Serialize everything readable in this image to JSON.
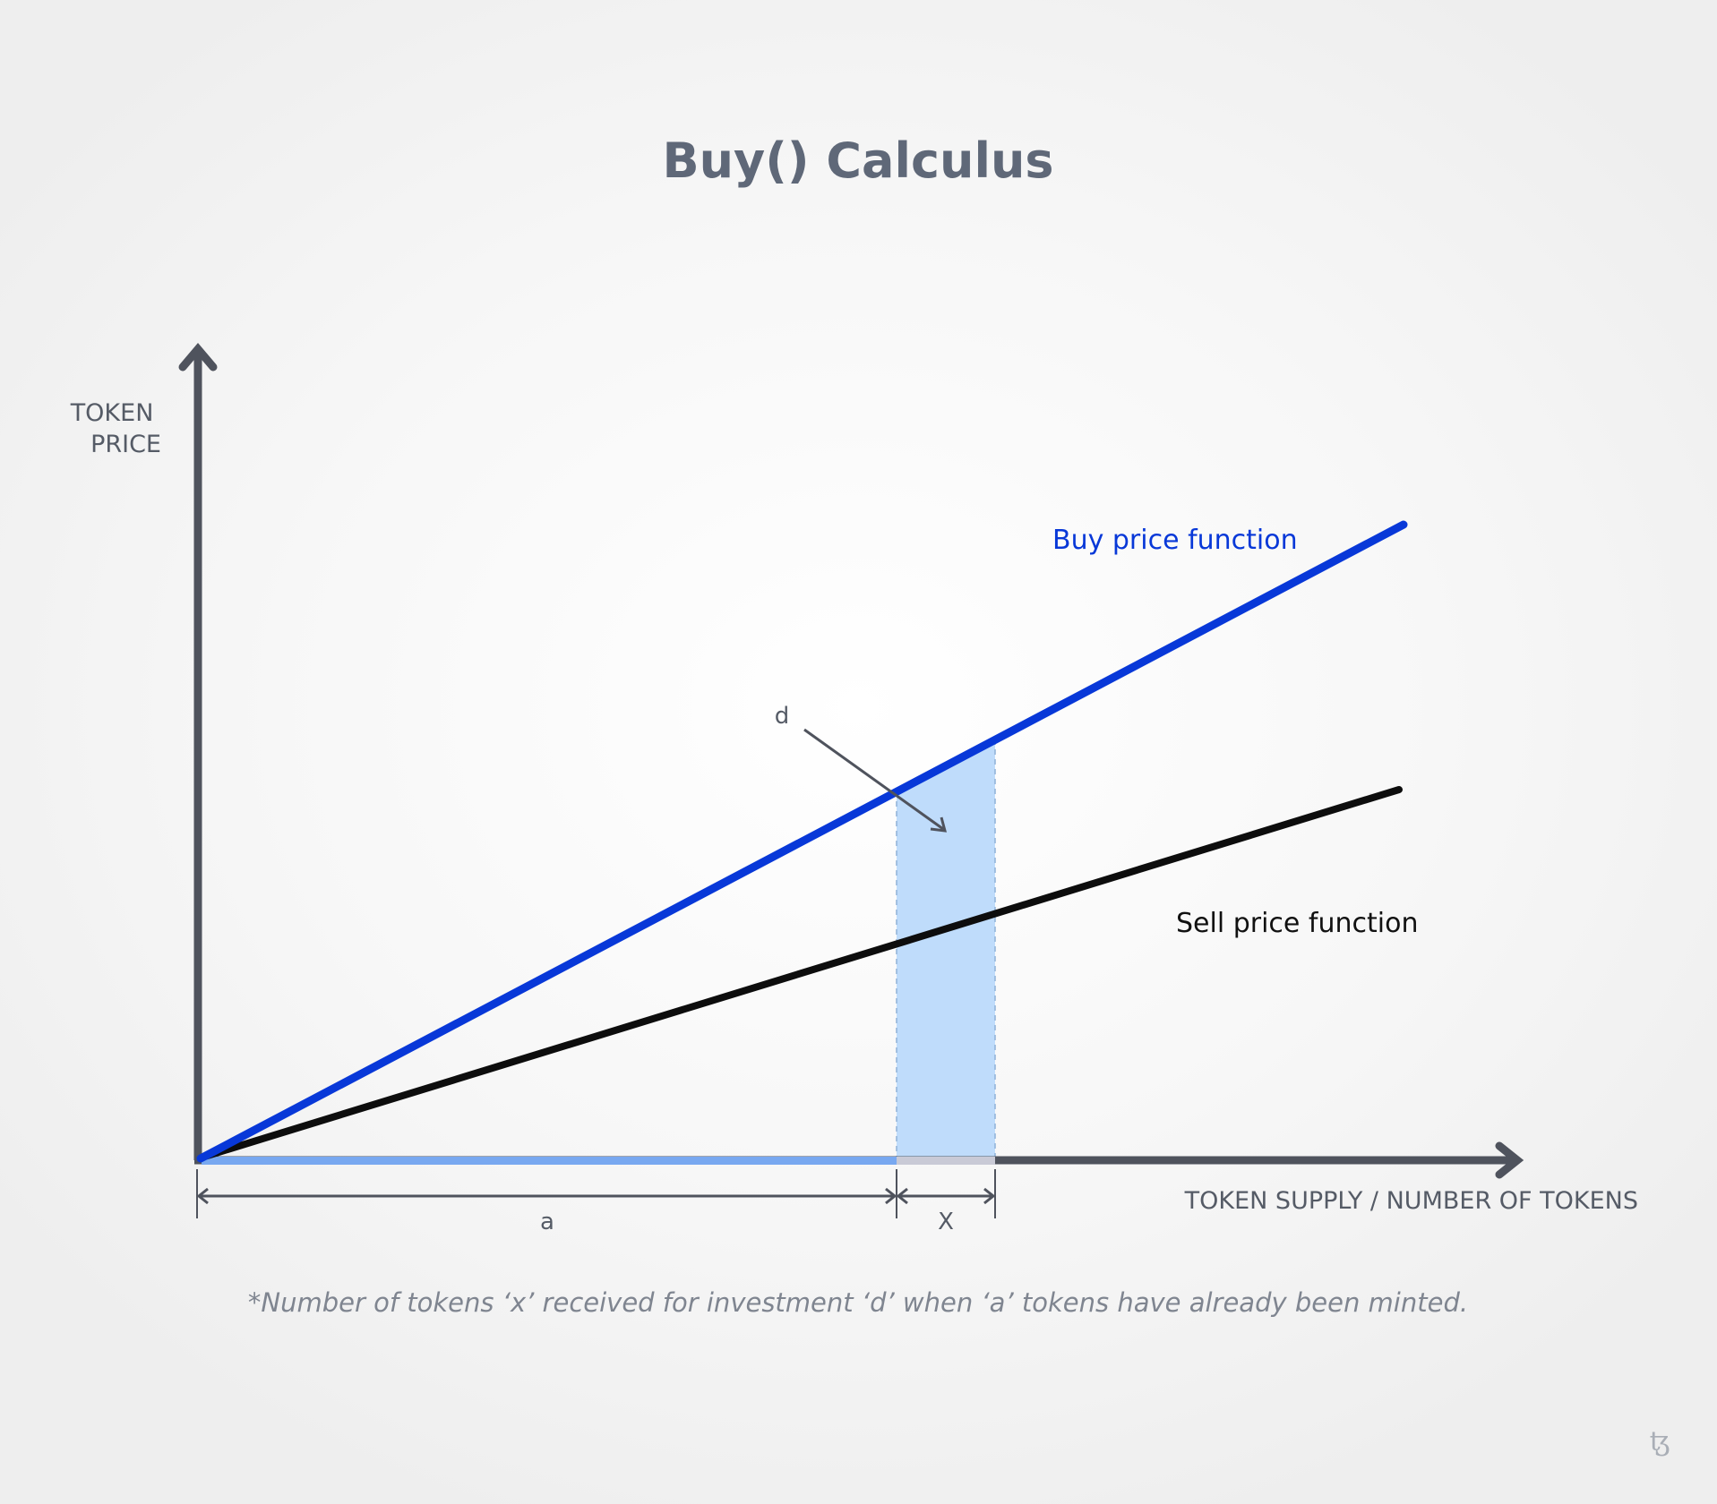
{
  "title": "Buy() Calculus",
  "axes": {
    "y_label_line1": "TOKEN",
    "y_label_line2": "PRICE",
    "x_label": "TOKEN SUPPLY / NUMBER OF TOKENS"
  },
  "curves": {
    "buy_label": "Buy price function",
    "sell_label": "Sell price function"
  },
  "annotations": {
    "investment_label": "d",
    "minted_label": "a",
    "received_label": "X"
  },
  "footnote": "*Number of tokens ‘x’ received for investment ‘d’ when ‘a’ tokens have already been minted.",
  "logo_text": "ꜩ",
  "colors": {
    "buy": "#0838d8",
    "sell": "#0d0d0d",
    "axis": "#4f535d",
    "shade": "#bfdcfb",
    "supply_bar": "#78a8f0"
  }
}
